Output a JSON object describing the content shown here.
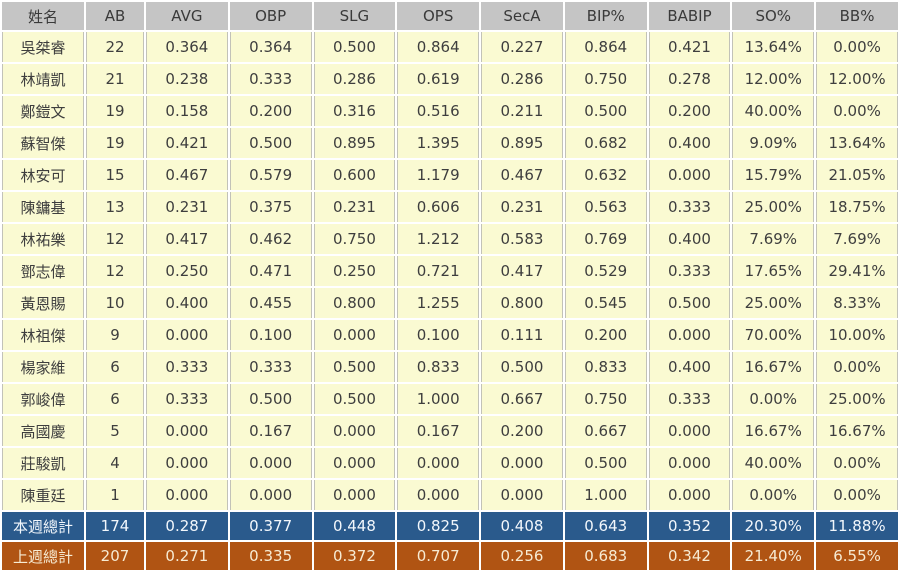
{
  "chart_data": {
    "type": "table",
    "title": "weekly-batting-stats",
    "columns": [
      "姓名",
      "AB",
      "AVG",
      "OBP",
      "SLG",
      "OPS",
      "SecA",
      "BIP%",
      "BABIP",
      "SO%",
      "BB%"
    ],
    "rows": [
      {
        "name": "吳桀睿",
        "values": [
          "22",
          "0.364",
          "0.364",
          "0.500",
          "0.864",
          "0.227",
          "0.864",
          "0.421",
          "13.64%",
          "0.00%"
        ]
      },
      {
        "name": "林靖凱",
        "values": [
          "21",
          "0.238",
          "0.333",
          "0.286",
          "0.619",
          "0.286",
          "0.750",
          "0.278",
          "12.00%",
          "12.00%"
        ]
      },
      {
        "name": "鄭鎧文",
        "values": [
          "19",
          "0.158",
          "0.200",
          "0.316",
          "0.516",
          "0.211",
          "0.500",
          "0.200",
          "40.00%",
          "0.00%"
        ]
      },
      {
        "name": "蘇智傑",
        "values": [
          "19",
          "0.421",
          "0.500",
          "0.895",
          "1.395",
          "0.895",
          "0.682",
          "0.400",
          "9.09%",
          "13.64%"
        ]
      },
      {
        "name": "林安可",
        "values": [
          "15",
          "0.467",
          "0.579",
          "0.600",
          "1.179",
          "0.467",
          "0.632",
          "0.000",
          "15.79%",
          "21.05%"
        ]
      },
      {
        "name": "陳鏞基",
        "values": [
          "13",
          "0.231",
          "0.375",
          "0.231",
          "0.606",
          "0.231",
          "0.563",
          "0.333",
          "25.00%",
          "18.75%"
        ]
      },
      {
        "name": "林祐樂",
        "values": [
          "12",
          "0.417",
          "0.462",
          "0.750",
          "1.212",
          "0.583",
          "0.769",
          "0.400",
          "7.69%",
          "7.69%"
        ]
      },
      {
        "name": "鄧志偉",
        "values": [
          "12",
          "0.250",
          "0.471",
          "0.250",
          "0.721",
          "0.417",
          "0.529",
          "0.333",
          "17.65%",
          "29.41%"
        ]
      },
      {
        "name": "黃恩賜",
        "values": [
          "10",
          "0.400",
          "0.455",
          "0.800",
          "1.255",
          "0.800",
          "0.545",
          "0.500",
          "25.00%",
          "8.33%"
        ]
      },
      {
        "name": "林祖傑",
        "values": [
          "9",
          "0.000",
          "0.100",
          "0.000",
          "0.100",
          "0.111",
          "0.200",
          "0.000",
          "70.00%",
          "10.00%"
        ]
      },
      {
        "name": "楊家維",
        "values": [
          "6",
          "0.333",
          "0.333",
          "0.500",
          "0.833",
          "0.500",
          "0.833",
          "0.400",
          "16.67%",
          "0.00%"
        ]
      },
      {
        "name": "郭峻偉",
        "values": [
          "6",
          "0.333",
          "0.500",
          "0.500",
          "1.000",
          "0.667",
          "0.750",
          "0.333",
          "0.00%",
          "25.00%"
        ]
      },
      {
        "name": "高國慶",
        "values": [
          "5",
          "0.000",
          "0.167",
          "0.000",
          "0.167",
          "0.200",
          "0.667",
          "0.000",
          "16.67%",
          "16.67%"
        ]
      },
      {
        "name": "莊駿凱",
        "values": [
          "4",
          "0.000",
          "0.000",
          "0.000",
          "0.000",
          "0.000",
          "0.500",
          "0.000",
          "40.00%",
          "0.00%"
        ]
      },
      {
        "name": "陳重廷",
        "values": [
          "1",
          "0.000",
          "0.000",
          "0.000",
          "0.000",
          "0.000",
          "1.000",
          "0.000",
          "0.00%",
          "0.00%"
        ]
      }
    ],
    "totals": [
      {
        "key": "this-week",
        "label": "本週總計",
        "values": [
          "174",
          "0.287",
          "0.377",
          "0.448",
          "0.825",
          "0.408",
          "0.643",
          "0.352",
          "20.30%",
          "11.88%"
        ]
      },
      {
        "key": "last-week",
        "label": "上週總計",
        "values": [
          "207",
          "0.271",
          "0.335",
          "0.372",
          "0.707",
          "0.256",
          "0.683",
          "0.342",
          "21.40%",
          "6.55%"
        ]
      }
    ]
  },
  "colors": {
    "header_bg": "#C5C5C5",
    "header_text": "#3A3A3A",
    "row_bg": "#FAFAD2",
    "row_text": "#3E3E3E",
    "grid_line": "#C2C2B8",
    "this_week_bg": "#2A5A8C",
    "this_week_text": "#F2F7FC",
    "last_week_bg": "#B05413",
    "last_week_text": "#F7EBD3"
  }
}
